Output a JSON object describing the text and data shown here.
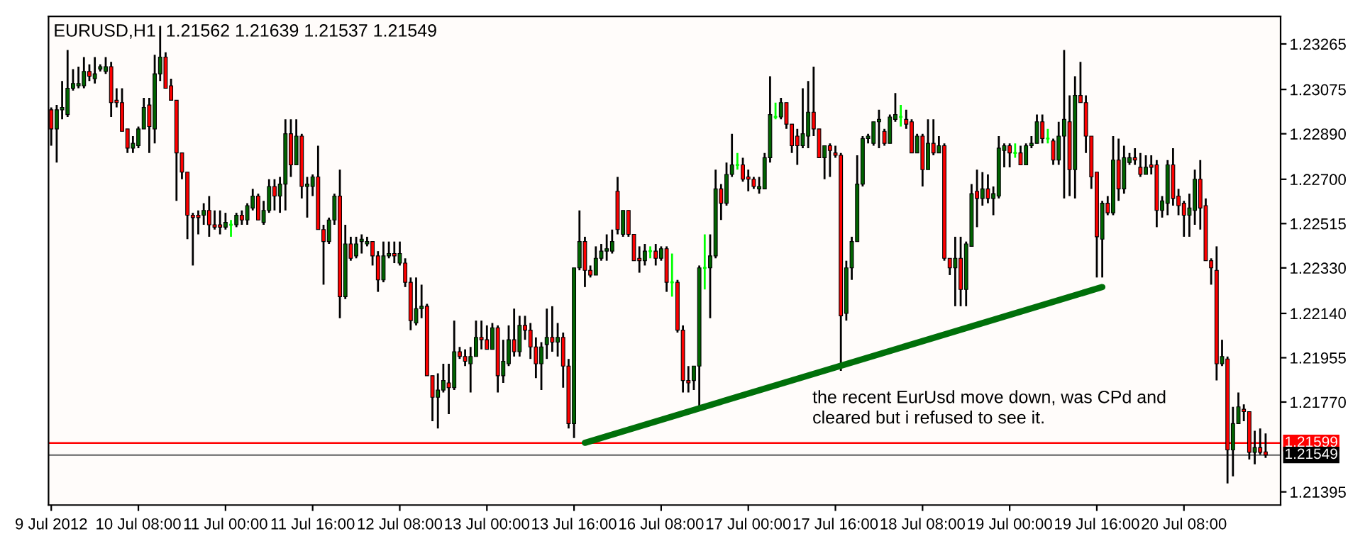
{
  "chart_data": {
    "type": "candlestick",
    "title": "EURUSD,H1  1.21562 1.21639 1.21537 1.21549",
    "categories": [
      "9 Jul 2012",
      null,
      null,
      null,
      null,
      null,
      null,
      null,
      null,
      null,
      null,
      null,
      null,
      null,
      null,
      null,
      "10 Jul 08:00",
      null,
      null,
      null,
      null,
      null,
      null,
      null,
      null,
      null,
      null,
      null,
      null,
      null,
      null,
      null,
      "11 Jul 00:00",
      null,
      null,
      null,
      null,
      null,
      null,
      null,
      null,
      null,
      null,
      null,
      null,
      null,
      null,
      null,
      "11 Jul 16:00",
      null,
      null,
      null,
      null,
      null,
      null,
      null,
      null,
      null,
      null,
      null,
      null,
      null,
      null,
      null,
      "12 Jul 08:00",
      null,
      null,
      null,
      null,
      null,
      null,
      null,
      null,
      null,
      null,
      null,
      null,
      null,
      null,
      null,
      "13 Jul 00:00",
      null,
      null,
      null,
      null,
      null,
      null,
      null,
      null,
      null,
      null,
      null,
      null,
      null,
      null,
      null,
      "13 Jul 16:00",
      null,
      null,
      null,
      null,
      null,
      null,
      null,
      null,
      null,
      null,
      null,
      null,
      null,
      null,
      null,
      "16 Jul 08:00",
      null,
      null,
      null,
      null,
      null,
      null,
      null,
      null,
      null,
      null,
      null,
      null,
      null,
      null,
      null,
      "17 Jul 00:00",
      null,
      null,
      null,
      null,
      null,
      null,
      null,
      null,
      null,
      null,
      null,
      null,
      null,
      null,
      null,
      "17 Jul 16:00",
      null,
      null,
      null,
      null,
      null,
      null,
      null,
      null,
      null,
      null,
      null,
      null,
      null,
      null,
      null,
      "18 Jul 08:00",
      null,
      null,
      null,
      null,
      null,
      null,
      null,
      null,
      null,
      null,
      null,
      null,
      null,
      null,
      null,
      "19 Jul 00:00",
      null,
      null,
      null,
      null,
      null,
      null,
      null,
      null,
      null,
      null,
      null,
      null,
      null,
      null,
      null,
      "19 Jul 16:00",
      null,
      null,
      null,
      null,
      null,
      null,
      null,
      null,
      null,
      null,
      null,
      null,
      null,
      null,
      null,
      "20 Jul 08:00",
      null,
      null,
      null,
      null,
      null,
      null,
      null,
      null,
      null,
      null,
      null,
      null,
      null,
      null,
      null
    ],
    "ohlc": [
      [
        1.2299,
        1.23,
        1.2284,
        1.2291
      ],
      [
        1.2291,
        1.2301,
        1.2277,
        1.2299
      ],
      [
        1.2299,
        1.2311,
        1.2295,
        1.23
      ],
      [
        1.2297,
        1.2324,
        1.2296,
        1.2308
      ],
      [
        1.2308,
        1.2316,
        1.2307,
        1.231
      ],
      [
        1.2309,
        1.2317,
        1.2308,
        1.231
      ],
      [
        1.2309,
        1.2321,
        1.2308,
        1.2315
      ],
      [
        1.2315,
        1.2318,
        1.2311,
        1.2313
      ],
      [
        1.2312,
        1.2321,
        1.231,
        1.2314
      ],
      [
        1.2316,
        1.2318,
        1.2315,
        1.2317
      ],
      [
        1.2315,
        1.2321,
        1.2314,
        1.2317
      ],
      [
        1.2317,
        1.2319,
        1.2296,
        1.2302
      ],
      [
        1.2303,
        1.2308,
        1.23,
        1.2302
      ],
      [
        1.2302,
        1.2308,
        1.229,
        1.229
      ],
      [
        1.2291,
        1.2291,
        1.2281,
        1.2283
      ],
      [
        1.2283,
        1.2288,
        1.2281,
        1.2285
      ],
      [
        1.2284,
        1.2292,
        1.2283,
        1.2291
      ],
      [
        1.2291,
        1.2304,
        1.2291,
        1.23
      ],
      [
        1.2301,
        1.2304,
        1.2281,
        1.2292
      ],
      [
        1.2291,
        1.2322,
        1.2285,
        1.2314
      ],
      [
        1.2314,
        1.2334,
        1.2311,
        1.2321
      ],
      [
        1.2321,
        1.2323,
        1.2308,
        1.2308
      ],
      [
        1.2309,
        1.2312,
        1.2303,
        1.2303
      ],
      [
        1.2303,
        1.2303,
        1.2261,
        1.2281
      ],
      [
        1.2281,
        1.2281,
        1.227,
        1.2273
      ],
      [
        1.2273,
        1.2273,
        1.2245,
        1.2255
      ],
      [
        1.2255,
        1.2256,
        1.2234,
        1.2254
      ],
      [
        1.2255,
        1.2257,
        1.2247,
        1.2254
      ],
      [
        1.2255,
        1.226,
        1.2251,
        1.2257
      ],
      [
        1.2257,
        1.2263,
        1.2246,
        1.2251
      ],
      [
        1.2251,
        1.2257,
        1.2249,
        1.225
      ],
      [
        1.2251,
        1.2257,
        1.2247,
        1.225
      ],
      [
        1.225,
        1.2256,
        1.2249,
        1.2252
      ],
      [
        1.2251,
        1.2253,
        1.2246,
        1.2251
      ],
      [
        1.2251,
        1.2256,
        1.225,
        1.2255
      ],
      [
        1.2255,
        1.2257,
        1.2251,
        1.2253
      ],
      [
        1.2253,
        1.226,
        1.2251,
        1.2259
      ],
      [
        1.2258,
        1.2266,
        1.2257,
        1.2263
      ],
      [
        1.2263,
        1.2264,
        1.2253,
        1.2253
      ],
      [
        1.2252,
        1.2261,
        1.2251,
        1.2257
      ],
      [
        1.2257,
        1.227,
        1.2256,
        1.2267
      ],
      [
        1.2267,
        1.227,
        1.2257,
        1.2263
      ],
      [
        1.2263,
        1.2271,
        1.2256,
        1.2268
      ],
      [
        1.2268,
        1.2295,
        1.2257,
        1.2289
      ],
      [
        1.2289,
        1.2295,
        1.2271,
        1.2276
      ],
      [
        1.2276,
        1.2295,
        1.2276,
        1.2288
      ],
      [
        1.2288,
        1.2289,
        1.2262,
        1.2267
      ],
      [
        1.2267,
        1.2271,
        1.2254,
        1.2268
      ],
      [
        1.2267,
        1.2272,
        1.2263,
        1.2271
      ],
      [
        1.2271,
        1.2284,
        1.2249,
        1.2249
      ],
      [
        1.2249,
        1.2251,
        1.2226,
        1.2244
      ],
      [
        1.2244,
        1.2254,
        1.2243,
        1.2253
      ],
      [
        1.2253,
        1.2264,
        1.2251,
        1.2263
      ],
      [
        1.2263,
        1.2274,
        1.2212,
        1.2221
      ],
      [
        1.2221,
        1.2251,
        1.222,
        1.2243
      ],
      [
        1.2243,
        1.2246,
        1.2236,
        1.2237
      ],
      [
        1.2238,
        1.2246,
        1.2237,
        1.2243
      ],
      [
        1.2244,
        1.2247,
        1.2239,
        1.2245
      ],
      [
        1.2243,
        1.2246,
        1.2242,
        1.2244
      ],
      [
        1.2244,
        1.2244,
        1.2234,
        1.2238
      ],
      [
        1.2238,
        1.224,
        1.2223,
        1.2228
      ],
      [
        1.2228,
        1.2244,
        1.2227,
        1.2238
      ],
      [
        1.2238,
        1.2244,
        1.2237,
        1.2239
      ],
      [
        1.2239,
        1.2244,
        1.2235,
        1.2238
      ],
      [
        1.2235,
        1.2244,
        1.2234,
        1.2239
      ],
      [
        1.2235,
        1.2237,
        1.2225,
        1.2227
      ],
      [
        1.2227,
        1.2229,
        1.2207,
        1.2211
      ],
      [
        1.221,
        1.2229,
        1.2209,
        1.2216
      ],
      [
        1.2216,
        1.2226,
        1.2212,
        1.2217
      ],
      [
        1.2217,
        1.2218,
        1.2188,
        1.2188
      ],
      [
        1.2188,
        1.2188,
        1.2169,
        1.2179
      ],
      [
        1.2179,
        1.2189,
        1.2166,
        1.2182
      ],
      [
        1.2182,
        1.2193,
        1.2181,
        1.2186
      ],
      [
        1.2185,
        1.2193,
        1.2172,
        1.2183
      ],
      [
        1.2183,
        1.2211,
        1.2182,
        1.2198
      ],
      [
        1.2198,
        1.22,
        1.2195,
        1.2196
      ],
      [
        1.2196,
        1.2199,
        1.2192,
        1.2194
      ],
      [
        1.2193,
        1.22,
        1.2181,
        1.2196
      ],
      [
        1.2196,
        1.2211,
        1.2196,
        1.2204
      ],
      [
        1.2204,
        1.2211,
        1.2199,
        1.2203
      ],
      [
        1.2203,
        1.2209,
        1.2199,
        1.2199
      ],
      [
        1.2199,
        1.221,
        1.2199,
        1.2208
      ],
      [
        1.2208,
        1.2209,
        1.2181,
        1.2188
      ],
      [
        1.2188,
        1.2203,
        1.2185,
        1.2194
      ],
      [
        1.2193,
        1.2209,
        1.2192,
        1.2203
      ],
      [
        1.2203,
        1.2216,
        1.2196,
        1.2198
      ],
      [
        1.2198,
        1.2213,
        1.2196,
        1.2209
      ],
      [
        1.2209,
        1.2213,
        1.2203,
        1.2207
      ],
      [
        1.2207,
        1.221,
        1.2195,
        1.22
      ],
      [
        1.22,
        1.2204,
        1.2187,
        1.2193
      ],
      [
        1.2193,
        1.2202,
        1.2182,
        1.22
      ],
      [
        1.2201,
        1.2216,
        1.2195,
        1.2204
      ],
      [
        1.2204,
        1.2217,
        1.2198,
        1.2202
      ],
      [
        1.2202,
        1.221,
        1.2196,
        1.2204
      ],
      [
        1.2204,
        1.2206,
        1.2183,
        1.2192
      ],
      [
        1.2192,
        1.2195,
        1.2166,
        1.2168
      ],
      [
        1.2168,
        1.2233,
        1.2162,
        1.2233
      ],
      [
        1.2233,
        1.2257,
        1.2232,
        1.2244
      ],
      [
        1.2244,
        1.2246,
        1.2225,
        1.2232
      ],
      [
        1.2232,
        1.2234,
        1.2229,
        1.223
      ],
      [
        1.223,
        1.2242,
        1.223,
        1.2237
      ],
      [
        1.2237,
        1.2243,
        1.2236,
        1.224
      ],
      [
        1.224,
        1.2247,
        1.2236,
        1.2241
      ],
      [
        1.224,
        1.2249,
        1.2239,
        1.2244
      ],
      [
        1.2265,
        1.2271,
        1.2247,
        1.2249
      ],
      [
        1.2247,
        1.2257,
        1.2246,
        1.2257
      ],
      [
        1.2257,
        1.2257,
        1.2246,
        1.2247
      ],
      [
        1.2247,
        1.2247,
        1.2236,
        1.2236
      ],
      [
        1.2237,
        1.2242,
        1.2231,
        1.2236
      ],
      [
        1.2236,
        1.2243,
        1.2234,
        1.224
      ],
      [
        1.224,
        1.2242,
        1.2237,
        1.224
      ],
      [
        1.224,
        1.2243,
        1.2234,
        1.2237
      ],
      [
        1.2237,
        1.2242,
        1.2236,
        1.2241
      ],
      [
        1.2241,
        1.2242,
        1.2223,
        1.2227
      ],
      [
        1.2227,
        1.2239,
        1.2221,
        1.2227
      ],
      [
        1.2227,
        1.2228,
        1.2206,
        1.2207
      ],
      [
        1.2207,
        1.2209,
        1.2181,
        1.2186
      ],
      [
        1.2186,
        1.2192,
        1.2181,
        1.2185
      ],
      [
        1.2186,
        1.2192,
        1.2182,
        1.2192
      ],
      [
        1.2192,
        1.2234,
        1.2175,
        1.2233
      ],
      [
        1.2233,
        1.2247,
        1.2224,
        1.2233
      ],
      [
        1.2233,
        1.2247,
        1.2212,
        1.2238
      ],
      [
        1.2238,
        1.2274,
        1.2237,
        1.2266
      ],
      [
        1.2266,
        1.2268,
        1.2253,
        1.226
      ],
      [
        1.226,
        1.2277,
        1.2259,
        1.2272
      ],
      [
        1.2272,
        1.2289,
        1.2271,
        1.2276
      ],
      [
        1.2276,
        1.2281,
        1.2274,
        1.2276
      ],
      [
        1.2276,
        1.2279,
        1.2269,
        1.227
      ],
      [
        1.2271,
        1.2274,
        1.2265,
        1.227
      ],
      [
        1.227,
        1.2271,
        1.2266,
        1.2267
      ],
      [
        1.2266,
        1.2271,
        1.2264,
        1.2267
      ],
      [
        1.2266,
        1.2281,
        1.2266,
        1.2279
      ],
      [
        1.2279,
        1.2313,
        1.2277,
        1.2297
      ],
      [
        1.2296,
        1.2302,
        1.2295,
        1.2296
      ],
      [
        1.2296,
        1.2304,
        1.2295,
        1.2302
      ],
      [
        1.2302,
        1.2302,
        1.2291,
        1.2293
      ],
      [
        1.2293,
        1.2293,
        1.2281,
        1.2284
      ],
      [
        1.2288,
        1.2291,
        1.2276,
        1.2284
      ],
      [
        1.2284,
        1.2308,
        1.2283,
        1.2289
      ],
      [
        1.2288,
        1.2311,
        1.2283,
        1.2298
      ],
      [
        1.2298,
        1.2317,
        1.2288,
        1.2291
      ],
      [
        1.2291,
        1.2291,
        1.2279,
        1.2279
      ],
      [
        1.2279,
        1.2284,
        1.227,
        1.2284
      ],
      [
        1.2284,
        1.2285,
        1.2271,
        1.2282
      ],
      [
        1.2281,
        1.2284,
        1.2279,
        1.228
      ],
      [
        1.228,
        1.2281,
        1.219,
        1.2213
      ],
      [
        1.2214,
        1.2236,
        1.2211,
        1.2233
      ],
      [
        1.2233,
        1.2246,
        1.2228,
        1.2244
      ],
      [
        1.2244,
        1.228,
        1.2244,
        1.2268
      ],
      [
        1.2268,
        1.2288,
        1.2267,
        1.2287
      ],
      [
        1.2287,
        1.2289,
        1.2285,
        1.2288
      ],
      [
        1.2285,
        1.2294,
        1.2284,
        1.2294
      ],
      [
        1.2294,
        1.2299,
        1.2283,
        1.2295
      ],
      [
        1.229,
        1.2291,
        1.2284,
        1.2285
      ],
      [
        1.2285,
        1.2297,
        1.2285,
        1.2296
      ],
      [
        1.2295,
        1.2306,
        1.2294,
        1.2297
      ],
      [
        1.2296,
        1.2301,
        1.2292,
        1.2296
      ],
      [
        1.2295,
        1.2299,
        1.2291,
        1.2293
      ],
      [
        1.2294,
        1.2295,
        1.2281,
        1.2281
      ],
      [
        1.2281,
        1.2289,
        1.2281,
        1.2288
      ],
      [
        1.2288,
        1.2289,
        1.2267,
        1.2274
      ],
      [
        1.2274,
        1.2295,
        1.2274,
        1.2285
      ],
      [
        1.2285,
        1.2295,
        1.228,
        1.2281
      ],
      [
        1.2281,
        1.2288,
        1.2281,
        1.2284
      ],
      [
        1.2284,
        1.2285,
        1.2236,
        1.2237
      ],
      [
        1.2237,
        1.2237,
        1.223,
        1.2233
      ],
      [
        1.2233,
        1.2246,
        1.2217,
        1.2237
      ],
      [
        1.2237,
        1.2246,
        1.2217,
        1.2224
      ],
      [
        1.2224,
        1.2244,
        1.2217,
        1.2243
      ],
      [
        1.2242,
        1.2268,
        1.2242,
        1.2264
      ],
      [
        1.2265,
        1.2274,
        1.225,
        1.2262
      ],
      [
        1.2262,
        1.2273,
        1.2259,
        1.2266
      ],
      [
        1.2266,
        1.2272,
        1.226,
        1.2262
      ],
      [
        1.2262,
        1.2267,
        1.2255,
        1.2264
      ],
      [
        1.2263,
        1.2288,
        1.2262,
        1.2283
      ],
      [
        1.2282,
        1.2285,
        1.2275,
        1.2284
      ],
      [
        1.2284,
        1.2285,
        1.2275,
        1.2281
      ],
      [
        1.2281,
        1.2285,
        1.2279,
        1.2281
      ],
      [
        1.2281,
        1.2284,
        1.2276,
        1.2276
      ],
      [
        1.2276,
        1.2285,
        1.2276,
        1.2284
      ],
      [
        1.2284,
        1.2288,
        1.2283,
        1.2285
      ],
      [
        1.2285,
        1.2297,
        1.2285,
        1.2294
      ],
      [
        1.2294,
        1.2297,
        1.2285,
        1.2287
      ],
      [
        1.2287,
        1.2291,
        1.2285,
        1.2287
      ],
      [
        1.2286,
        1.2287,
        1.2276,
        1.2278
      ],
      [
        1.2278,
        1.2294,
        1.2276,
        1.2288
      ],
      [
        1.2288,
        1.2324,
        1.2262,
        1.2295
      ],
      [
        1.2294,
        1.2305,
        1.2263,
        1.2274
      ],
      [
        1.2274,
        1.2313,
        1.2262,
        1.2305
      ],
      [
        1.2305,
        1.2319,
        1.2302,
        1.2302
      ],
      [
        1.2302,
        1.2305,
        1.2281,
        1.2288
      ],
      [
        1.2288,
        1.2288,
        1.2266,
        1.2271
      ],
      [
        1.2273,
        1.2273,
        1.2229,
        1.2246
      ],
      [
        1.2245,
        1.2261,
        1.2229,
        1.226
      ],
      [
        1.226,
        1.2263,
        1.2255,
        1.2256
      ],
      [
        1.2256,
        1.2288,
        1.2255,
        1.2278
      ],
      [
        1.2278,
        1.2287,
        1.2261,
        1.2266
      ],
      [
        1.2266,
        1.2284,
        1.2264,
        1.2279
      ],
      [
        1.2277,
        1.2281,
        1.2276,
        1.2279
      ],
      [
        1.2279,
        1.2283,
        1.2276,
        1.2278
      ],
      [
        1.2275,
        1.2281,
        1.2271,
        1.2272
      ],
      [
        1.2272,
        1.228,
        1.2272,
        1.2275
      ],
      [
        1.2276,
        1.228,
        1.2272,
        1.2275
      ],
      [
        1.2276,
        1.2278,
        1.225,
        1.2257
      ],
      [
        1.2257,
        1.2263,
        1.2254,
        1.2261
      ],
      [
        1.226,
        1.2278,
        1.2255,
        1.2276
      ],
      [
        1.2276,
        1.2283,
        1.2259,
        1.2262
      ],
      [
        1.2263,
        1.2266,
        1.2255,
        1.2259
      ],
      [
        1.226,
        1.2261,
        1.2246,
        1.2255
      ],
      [
        1.2255,
        1.2264,
        1.2246,
        1.2258
      ],
      [
        1.2257,
        1.2274,
        1.2251,
        1.227
      ],
      [
        1.227,
        1.2278,
        1.2249,
        1.2258
      ],
      [
        1.2259,
        1.2262,
        1.2236,
        1.2236
      ],
      [
        1.2236,
        1.2237,
        1.2226,
        1.2233
      ],
      [
        1.2232,
        1.2242,
        1.2186,
        1.2193
      ],
      [
        1.2193,
        1.2203,
        1.2192,
        1.2196
      ],
      [
        1.2195,
        1.2196,
        1.2143,
        1.2157
      ],
      [
        1.2157,
        1.2175,
        1.2146,
        1.2168
      ],
      [
        1.2168,
        1.2181,
        1.2168,
        1.2175
      ],
      [
        1.2174,
        1.2176,
        1.2169,
        1.2173
      ],
      [
        1.2173,
        1.2173,
        1.2153,
        1.2156
      ],
      [
        1.2156,
        1.2165,
        1.2151,
        1.2158
      ],
      [
        1.2158,
        1.2166,
        1.2155,
        1.2156
      ],
      [
        1.21562,
        1.21639,
        1.21537,
        1.21549
      ]
    ],
    "series": [
      {
        "type": "line",
        "color": "#00700a",
        "values": [
          null,
          null,
          null,
          null,
          null,
          null,
          null,
          null,
          null,
          null,
          null,
          null,
          null,
          null,
          null,
          null,
          null,
          null,
          null,
          null,
          null,
          null,
          null,
          null,
          null,
          null,
          null,
          null,
          null,
          null,
          null,
          null,
          null,
          null,
          null,
          null,
          null,
          null,
          null,
          null,
          null,
          null,
          null,
          null,
          null,
          null,
          null,
          null,
          null,
          null,
          null,
          null,
          null,
          null,
          null,
          null,
          null,
          null,
          null,
          null,
          null,
          null,
          null,
          null,
          null,
          null,
          null,
          null,
          null,
          null,
          null,
          null,
          null,
          null,
          null,
          null,
          null,
          null,
          null,
          null,
          null,
          null,
          null,
          null,
          null,
          null,
          null,
          null,
          null,
          null,
          null,
          null,
          null,
          null,
          null,
          null,
          null,
          null,
          1.216,
          null,
          null,
          null,
          null,
          null,
          null,
          null,
          null,
          null,
          null,
          null,
          null,
          null,
          null,
          null,
          null,
          null,
          null,
          null,
          null,
          null,
          null,
          null,
          null,
          null,
          null,
          null,
          null,
          null,
          null,
          null,
          null,
          null,
          null,
          null,
          null,
          null,
          null,
          null,
          null,
          null,
          null,
          null,
          null,
          null,
          null,
          null,
          null,
          null,
          null,
          null,
          null,
          null,
          null,
          null,
          null,
          null,
          null,
          null,
          null,
          null,
          null,
          null,
          null,
          null,
          null,
          null,
          null,
          null,
          null,
          null,
          null,
          null,
          null,
          null,
          null,
          null,
          null,
          null,
          null,
          null,
          null,
          null,
          null,
          null,
          null,
          null,
          null,
          null,
          null,
          null,
          null,
          null,
          null,
          1.2225,
          null,
          null,
          null,
          null,
          null,
          null,
          null,
          null,
          null,
          null,
          null,
          null,
          null,
          null,
          null,
          null,
          null,
          null,
          null,
          null,
          null,
          null,
          null,
          null,
          null,
          null,
          null,
          null,
          null,
          null
        ]
      }
    ],
    "ylim": [
      1.2134,
      1.2338
    ],
    "yticks": [
      1.21395,
      {
        "value": 1.2177,
        "label": "1.21770"
      },
      1.21955,
      {
        "value": 1.2214,
        "label": "1.22140"
      },
      {
        "value": 1.2233,
        "label": "1.22330"
      },
      1.22515,
      {
        "value": 1.227,
        "label": "1.22700"
      },
      {
        "value": 1.2289,
        "label": "1.22890"
      },
      1.23075,
      1.23265
    ],
    "ref_lines": [
      {
        "axis": "y",
        "value": 1.21599,
        "label": "1.21599",
        "color": "#ff0000",
        "line_style": "solid"
      },
      {
        "axis": "y",
        "value": 1.21549,
        "label": "1.21549",
        "color": "#808080",
        "line_style": "solid"
      }
    ],
    "annotations": [
      "the recent EurUsd move down, was CPd and\ncleared but i refused to see it."
    ]
  }
}
